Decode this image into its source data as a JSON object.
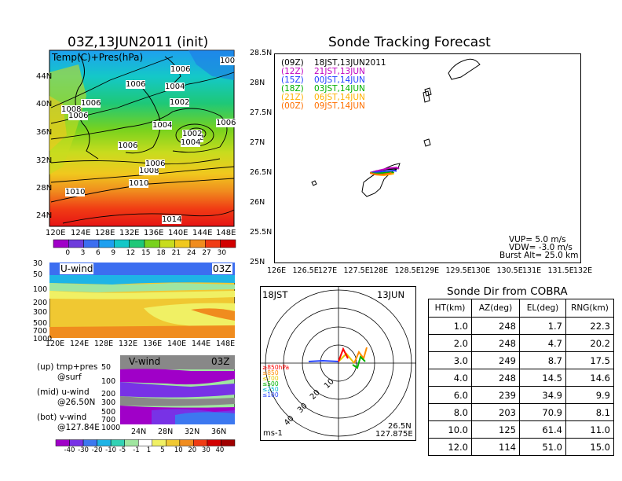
{
  "init_panel": {
    "title": "03Z,13JUN2011 (init)",
    "field_label": "Temp(C)+Pres(hPa)",
    "lat_labels": [
      "44N",
      "40N",
      "36N",
      "32N",
      "28N",
      "24N"
    ],
    "lon_labels": [
      "120E",
      "124E",
      "128E",
      "132E",
      "136E",
      "140E",
      "144E",
      "148E"
    ],
    "pressure_labels": [
      "1006",
      "1006",
      "1008",
      "1006",
      "1006",
      "1004",
      "1002",
      "1004",
      "1002",
      "1006",
      "1008",
      "1006",
      "1010",
      "1010",
      "1014",
      "1002",
      "1004",
      "1006",
      "100"
    ],
    "colorbar_ticks": [
      "0",
      "3",
      "6",
      "9",
      "12",
      "15",
      "18",
      "21",
      "24",
      "27",
      "30"
    ],
    "colorbar_colors": [
      "#a000c8",
      "#6e3cdc",
      "#3c6ef0",
      "#1ea0f0",
      "#14c8c8",
      "#1ec878",
      "#78d21e",
      "#c8dc1e",
      "#f0c81e",
      "#f08c1e",
      "#f03c14",
      "#d20000"
    ]
  },
  "u_panel": {
    "label": "U-wind",
    "time": "03Z",
    "y_ticks": [
      "30",
      "50",
      "100",
      "200",
      "300",
      "500",
      "700",
      "1000"
    ],
    "x_ticks": [
      "120E",
      "124E",
      "128E",
      "132E",
      "136E",
      "140E",
      "144E",
      "148E"
    ]
  },
  "v_panel": {
    "label": "V-wind",
    "time": "03Z",
    "y_ticks": [
      "50",
      "100",
      "200",
      "300",
      "500",
      "700",
      "1000"
    ],
    "x_ticks": [
      "24N",
      "28N",
      "32N",
      "36N"
    ],
    "notes": [
      {
        "title": "(up) tmp+pres",
        "sub": "@surf"
      },
      {
        "title": "(mid) u-wind",
        "sub": "@26.50N"
      },
      {
        "title": "(bot) v-wind",
        "sub": "@127.84E"
      }
    ],
    "colorbar_ticks": [
      "-40",
      "-30",
      "-20",
      "-10",
      "-5",
      "-1",
      "1",
      "5",
      "10",
      "20",
      "30",
      "40"
    ],
    "colorbar_colors": [
      "#a000c8",
      "#7832e6",
      "#3c78f0",
      "#1eb4e6",
      "#32d2b4",
      "#a0e6a0",
      "#ffffff",
      "#f0f064",
      "#f0c832",
      "#f08c1e",
      "#f03c14",
      "#d20000",
      "#a00000"
    ]
  },
  "tracking": {
    "title": "Sonde Tracking Forecast",
    "legend": [
      {
        "code": "(09Z)",
        "time": "18JST,13JUN2011",
        "color": "#000000"
      },
      {
        "code": "(12Z)",
        "time": "21JST,13JUN",
        "color": "#c000c0"
      },
      {
        "code": "(15Z)",
        "time": "00JST,14JUN",
        "color": "#2040ff"
      },
      {
        "code": "(18Z)",
        "time": "03JST,14JUN",
        "color": "#00b000"
      },
      {
        "code": "(21Z)",
        "time": "06JST,14JUN",
        "color": "#ffb000"
      },
      {
        "code": "(00Z)",
        "time": "09JST,14JUN",
        "color": "#ff7000"
      }
    ],
    "lat_labels": [
      "28.5N",
      "28N",
      "27.5N",
      "27N",
      "26.5N",
      "26N",
      "25.5N",
      "25N"
    ],
    "lon_labels": [
      "126E",
      "126.5E",
      "127E",
      "127.5E",
      "128E",
      "128.5E",
      "129E",
      "129.5E",
      "130E",
      "130.5E",
      "131E",
      "131.5E",
      "132E"
    ],
    "params": [
      "VUP= 5.0 m/s",
      "VDW= -3.0 m/s",
      "Burst Alt= 25.0 km"
    ]
  },
  "polar": {
    "time_left": "18JST",
    "date_right": "13JUN",
    "ring_labels": [
      "10",
      "20",
      "30",
      "40"
    ],
    "alt_legend": [
      {
        "label": "≥850hPa",
        "color": "#ff0000"
      },
      {
        "label": "≤850",
        "color": "#ff8c00"
      },
      {
        "label": "≤700",
        "color": "#e6c800"
      },
      {
        "label": "≤500",
        "color": "#00b400"
      },
      {
        "label": "≤250",
        "color": "#00b4d2"
      },
      {
        "label": "≤100",
        "color": "#2846ff"
      }
    ],
    "unit": "ms-1",
    "pos_lat": "26.5N",
    "pos_lon": "127.875E"
  },
  "sonde_dir": {
    "title": "Sonde Dir from COBRA",
    "headers": [
      "HT(km)",
      "AZ(deg)",
      "EL(deg)",
      "RNG(km)"
    ],
    "rows": [
      [
        "1.0",
        "248",
        "1.7",
        "22.3"
      ],
      [
        "2.0",
        "248",
        "4.7",
        "20.2"
      ],
      [
        "3.0",
        "249",
        "8.7",
        "17.5"
      ],
      [
        "4.0",
        "248",
        "14.5",
        "14.6"
      ],
      [
        "6.0",
        "239",
        "34.9",
        "9.9"
      ],
      [
        "8.0",
        "203",
        "70.9",
        "8.1"
      ],
      [
        "10.0",
        "125",
        "61.4",
        "11.0"
      ],
      [
        "12.0",
        "114",
        "51.0",
        "15.0"
      ]
    ]
  },
  "chart_data": [
    {
      "type": "heatmap",
      "title": "03Z,13JUN2011 (init)",
      "label": "Temp(C)+Pres(hPa)",
      "xlabel": "",
      "ylabel": "",
      "xlim": [
        "120E",
        "150E"
      ],
      "ylim": [
        "22N",
        "48N"
      ],
      "isobars_hPa": [
        1002,
        1004,
        1006,
        1008,
        1010,
        1014
      ]
    },
    {
      "type": "heatmap",
      "title": "U-wind",
      "label": "@26.50N",
      "ylim_hPa": [
        1000,
        30
      ]
    },
    {
      "type": "heatmap",
      "title": "V-wind",
      "label": "@127.84E",
      "ylim_hPa": [
        1000,
        50
      ]
    },
    {
      "type": "line",
      "title": "Sonde Tracking Forecast",
      "xlim": [
        126,
        132
      ],
      "ylim": [
        25,
        28.5
      ],
      "series": [
        {
          "name": "(09Z) 18JST,13JUN2011",
          "x": [
            127.88,
            128.0,
            128.2,
            128.35,
            128.4
          ],
          "y": [
            26.5,
            26.53,
            26.56,
            26.57,
            26.56
          ]
        },
        {
          "name": "(12Z) 21JST,13JUN",
          "x": [
            127.88,
            128.05,
            128.25,
            128.4,
            128.45
          ],
          "y": [
            26.5,
            26.54,
            26.58,
            26.59,
            26.57
          ]
        },
        {
          "name": "(15Z) 00JST,14JUN",
          "x": [
            127.88,
            128.0,
            128.2,
            128.35,
            128.4
          ],
          "y": [
            26.5,
            26.51,
            26.53,
            26.54,
            26.53
          ]
        },
        {
          "name": "(18Z) 03JST,14JUN",
          "x": [
            127.88,
            128.0,
            128.15,
            128.3,
            128.35
          ],
          "y": [
            26.5,
            26.49,
            26.5,
            26.51,
            26.5
          ]
        },
        {
          "name": "(21Z) 06JST,14JUN",
          "x": [
            127.88,
            128.0,
            128.15,
            128.3,
            128.35
          ],
          "y": [
            26.5,
            26.47,
            26.46,
            26.48,
            26.49
          ]
        },
        {
          "name": "(00Z) 09JST,14JUN",
          "x": [
            127.88,
            127.95,
            128.1,
            128.25,
            128.3
          ],
          "y": [
            26.5,
            26.48,
            26.47,
            26.49,
            26.5
          ]
        }
      ]
    }
  ]
}
